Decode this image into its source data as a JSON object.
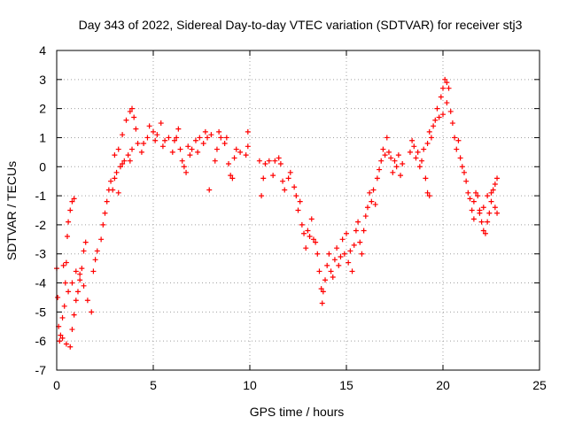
{
  "chart_data": {
    "type": "scatter",
    "title": "Day 343 of 2022, Sidereal Day-to-day VTEC variation (SDTVAR) for receiver stj3",
    "xlabel": "GPS time / hours",
    "ylabel": "SDTVAR / TECUs",
    "xlim": [
      0,
      25
    ],
    "ylim": [
      -7,
      4
    ],
    "x_ticks": [
      "0",
      "5",
      "10",
      "15",
      "20",
      "25"
    ],
    "y_ticks": [
      "4",
      "3",
      "2",
      "1",
      "0",
      "-1",
      "-2",
      "-3",
      "-4",
      "-5",
      "-6",
      "-7"
    ],
    "grid": true,
    "marker": "plus",
    "color": "#ff0000",
    "series": [
      {
        "name": "SDTVAR",
        "points": [
          [
            0.0,
            -3.5
          ],
          [
            0.05,
            -4.5
          ],
          [
            0.1,
            -5.5
          ],
          [
            0.15,
            -6.0
          ],
          [
            0.2,
            -5.8
          ],
          [
            0.3,
            -5.2
          ],
          [
            0.35,
            -3.4
          ],
          [
            0.4,
            -4.8
          ],
          [
            0.45,
            -4.0
          ],
          [
            0.5,
            -3.3
          ],
          [
            0.55,
            -2.4
          ],
          [
            0.6,
            -1.9
          ],
          [
            0.7,
            -1.5
          ],
          [
            0.8,
            -1.2
          ],
          [
            0.9,
            -1.1
          ],
          [
            0.3,
            -5.9
          ],
          [
            0.5,
            -6.1
          ],
          [
            0.7,
            -6.2
          ],
          [
            0.8,
            -5.6
          ],
          [
            0.9,
            -5.1
          ],
          [
            1.0,
            -4.6
          ],
          [
            1.1,
            -4.3
          ],
          [
            1.2,
            -3.9
          ],
          [
            1.3,
            -3.5
          ],
          [
            1.4,
            -2.9
          ],
          [
            1.5,
            -2.6
          ],
          [
            0.6,
            -4.3
          ],
          [
            0.8,
            -4.0
          ],
          [
            1.0,
            -3.6
          ],
          [
            1.2,
            -3.7
          ],
          [
            1.4,
            -4.1
          ],
          [
            1.6,
            -4.6
          ],
          [
            1.8,
            -5.0
          ],
          [
            1.9,
            -3.6
          ],
          [
            2.0,
            -3.2
          ],
          [
            2.1,
            -2.9
          ],
          [
            2.3,
            -2.5
          ],
          [
            2.4,
            -2.0
          ],
          [
            2.5,
            -1.6
          ],
          [
            2.6,
            -1.2
          ],
          [
            2.7,
            -0.8
          ],
          [
            2.8,
            -0.5
          ],
          [
            2.9,
            -0.8
          ],
          [
            3.0,
            -0.4
          ],
          [
            3.1,
            -0.2
          ],
          [
            3.2,
            -0.9
          ],
          [
            3.3,
            0.0
          ],
          [
            3.4,
            0.1
          ],
          [
            3.5,
            0.2
          ],
          [
            3.0,
            0.4
          ],
          [
            3.2,
            0.6
          ],
          [
            3.4,
            1.1
          ],
          [
            3.6,
            1.6
          ],
          [
            3.8,
            1.9
          ],
          [
            3.9,
            2.0
          ],
          [
            4.0,
            1.7
          ],
          [
            4.1,
            1.3
          ],
          [
            3.7,
            0.4
          ],
          [
            3.8,
            0.2
          ],
          [
            3.9,
            0.6
          ],
          [
            4.2,
            0.8
          ],
          [
            4.4,
            0.5
          ],
          [
            4.5,
            0.8
          ],
          [
            4.7,
            1.0
          ],
          [
            4.8,
            1.4
          ],
          [
            5.0,
            1.2
          ],
          [
            5.1,
            0.9
          ],
          [
            5.2,
            1.1
          ],
          [
            5.4,
            1.5
          ],
          [
            5.5,
            0.7
          ],
          [
            5.6,
            0.9
          ],
          [
            5.8,
            1.0
          ],
          [
            6.0,
            0.5
          ],
          [
            6.1,
            0.9
          ],
          [
            6.2,
            1.0
          ],
          [
            6.3,
            1.3
          ],
          [
            6.4,
            0.6
          ],
          [
            6.5,
            0.2
          ],
          [
            6.6,
            0.0
          ],
          [
            6.7,
            -0.2
          ],
          [
            6.8,
            0.7
          ],
          [
            6.9,
            0.4
          ],
          [
            7.0,
            0.6
          ],
          [
            7.2,
            0.9
          ],
          [
            7.3,
            0.5
          ],
          [
            7.4,
            1.0
          ],
          [
            7.6,
            0.8
          ],
          [
            7.7,
            1.2
          ],
          [
            7.8,
            1.0
          ],
          [
            8.0,
            1.1
          ],
          [
            7.9,
            -0.8
          ],
          [
            8.2,
            0.2
          ],
          [
            8.3,
            0.6
          ],
          [
            8.4,
            1.2
          ],
          [
            8.5,
            1.0
          ],
          [
            8.7,
            0.8
          ],
          [
            8.8,
            1.0
          ],
          [
            8.9,
            0.1
          ],
          [
            9.0,
            -0.3
          ],
          [
            9.1,
            -0.4
          ],
          [
            9.2,
            0.3
          ],
          [
            9.3,
            0.6
          ],
          [
            9.5,
            0.5
          ],
          [
            9.8,
            0.4
          ],
          [
            9.9,
            0.7
          ],
          [
            9.9,
            1.2
          ],
          [
            10.6,
            -1.0
          ],
          [
            10.5,
            0.2
          ],
          [
            10.7,
            -0.4
          ],
          [
            10.8,
            0.1
          ],
          [
            11.0,
            0.2
          ],
          [
            11.2,
            -0.3
          ],
          [
            11.3,
            0.2
          ],
          [
            11.5,
            0.3
          ],
          [
            11.6,
            0.1
          ],
          [
            11.7,
            -0.5
          ],
          [
            11.8,
            -0.8
          ],
          [
            12.0,
            -0.4
          ],
          [
            12.1,
            -0.2
          ],
          [
            12.3,
            -0.7
          ],
          [
            12.4,
            -1.0
          ],
          [
            12.5,
            -1.5
          ],
          [
            12.6,
            -1.2
          ],
          [
            12.7,
            -2.0
          ],
          [
            12.8,
            -2.3
          ],
          [
            12.9,
            -2.8
          ],
          [
            13.0,
            -2.2
          ],
          [
            13.1,
            -2.4
          ],
          [
            13.2,
            -1.8
          ],
          [
            13.3,
            -2.5
          ],
          [
            13.4,
            -2.6
          ],
          [
            13.5,
            -3.0
          ],
          [
            13.6,
            -3.6
          ],
          [
            13.7,
            -4.2
          ],
          [
            13.75,
            -4.7
          ],
          [
            13.8,
            -4.3
          ],
          [
            13.9,
            -3.9
          ],
          [
            14.0,
            -3.4
          ],
          [
            14.1,
            -3.0
          ],
          [
            14.2,
            -3.6
          ],
          [
            14.3,
            -3.8
          ],
          [
            14.4,
            -3.2
          ],
          [
            14.5,
            -2.8
          ],
          [
            14.6,
            -3.4
          ],
          [
            14.7,
            -3.1
          ],
          [
            14.8,
            -2.5
          ],
          [
            14.9,
            -3.0
          ],
          [
            15.0,
            -2.3
          ],
          [
            15.1,
            -3.3
          ],
          [
            15.2,
            -2.9
          ],
          [
            15.3,
            -3.6
          ],
          [
            15.4,
            -2.7
          ],
          [
            15.5,
            -2.2
          ],
          [
            15.6,
            -1.9
          ],
          [
            15.7,
            -2.6
          ],
          [
            15.8,
            -3.0
          ],
          [
            15.9,
            -2.2
          ],
          [
            16.0,
            -1.7
          ],
          [
            16.1,
            -1.4
          ],
          [
            16.2,
            -0.9
          ],
          [
            16.3,
            -1.2
          ],
          [
            16.4,
            -0.8
          ],
          [
            16.5,
            -1.3
          ],
          [
            16.6,
            -0.4
          ],
          [
            16.7,
            -0.1
          ],
          [
            16.8,
            0.2
          ],
          [
            16.9,
            0.6
          ],
          [
            17.0,
            0.4
          ],
          [
            17.1,
            1.0
          ],
          [
            17.2,
            0.5
          ],
          [
            17.3,
            0.3
          ],
          [
            17.4,
            -0.2
          ],
          [
            17.5,
            0.2
          ],
          [
            17.6,
            0.0
          ],
          [
            17.7,
            0.4
          ],
          [
            17.8,
            -0.3
          ],
          [
            17.9,
            0.1
          ],
          [
            18.3,
            0.5
          ],
          [
            18.4,
            0.9
          ],
          [
            18.5,
            0.7
          ],
          [
            18.6,
            0.3
          ],
          [
            18.7,
            0.5
          ],
          [
            18.8,
            0.0
          ],
          [
            18.9,
            0.2
          ],
          [
            19.0,
            0.6
          ],
          [
            19.1,
            -0.4
          ],
          [
            19.2,
            -0.9
          ],
          [
            19.3,
            -1.0
          ],
          [
            19.2,
            0.8
          ],
          [
            19.3,
            1.2
          ],
          [
            19.4,
            1.0
          ],
          [
            19.5,
            1.4
          ],
          [
            19.6,
            1.6
          ],
          [
            19.7,
            2.0
          ],
          [
            19.8,
            1.7
          ],
          [
            19.9,
            2.4
          ],
          [
            20.0,
            2.7
          ],
          [
            20.1,
            3.0
          ],
          [
            20.2,
            2.9
          ],
          [
            20.3,
            2.7
          ],
          [
            20.0,
            1.8
          ],
          [
            20.2,
            2.2
          ],
          [
            20.4,
            1.9
          ],
          [
            20.5,
            1.5
          ],
          [
            20.6,
            1.0
          ],
          [
            20.7,
            0.6
          ],
          [
            20.8,
            0.9
          ],
          [
            20.9,
            0.3
          ],
          [
            21.0,
            0.0
          ],
          [
            21.1,
            -0.2
          ],
          [
            21.2,
            -0.5
          ],
          [
            21.3,
            -0.9
          ],
          [
            21.4,
            -1.1
          ],
          [
            21.5,
            -1.5
          ],
          [
            21.6,
            -1.2
          ],
          [
            21.7,
            -0.9
          ],
          [
            21.8,
            -1.0
          ],
          [
            21.9,
            -1.5
          ],
          [
            22.0,
            -1.9
          ],
          [
            22.1,
            -2.2
          ],
          [
            22.2,
            -2.3
          ],
          [
            22.3,
            -1.9
          ],
          [
            22.4,
            -1.6
          ],
          [
            22.5,
            -1.2
          ],
          [
            22.6,
            -0.8
          ],
          [
            22.7,
            -0.6
          ],
          [
            22.8,
            -0.4
          ],
          [
            21.6,
            -1.8
          ],
          [
            21.9,
            -1.6
          ],
          [
            22.1,
            -1.4
          ],
          [
            22.3,
            -1.0
          ],
          [
            22.5,
            -0.9
          ],
          [
            22.7,
            -1.4
          ],
          [
            22.8,
            -1.6
          ]
        ]
      }
    ]
  }
}
